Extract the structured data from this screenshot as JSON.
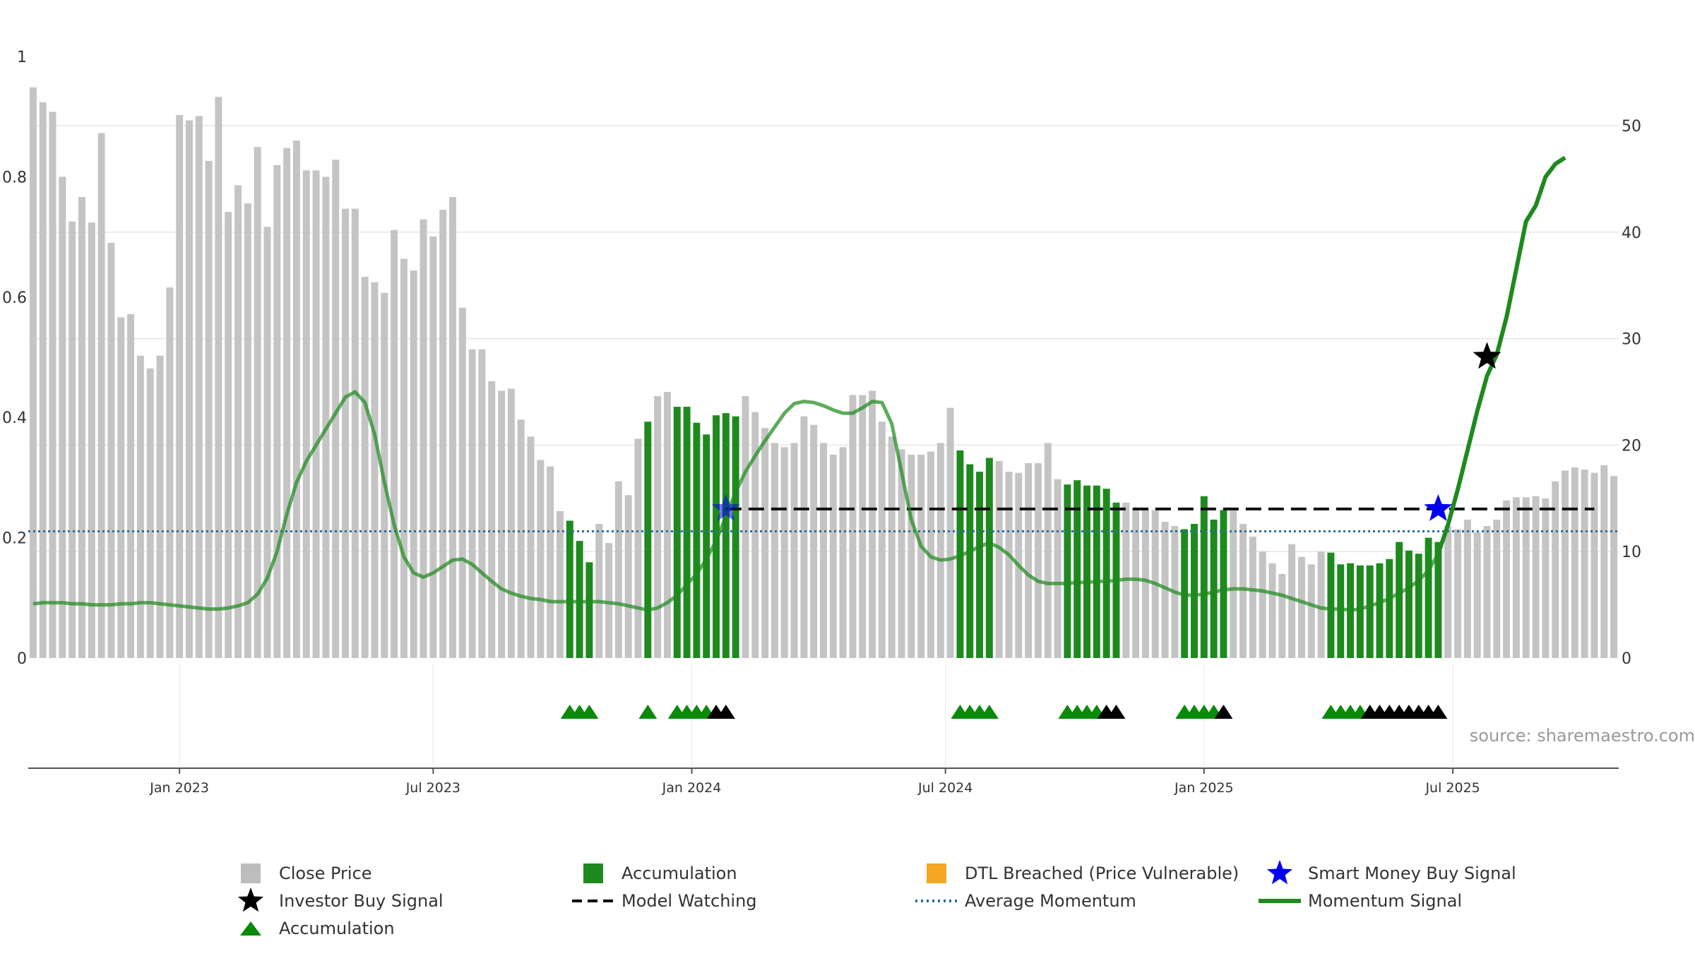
{
  "chart_data": {
    "type": "bar",
    "source_text": "source: sharemaestro.com",
    "left_axis": {
      "ylim": [
        0,
        1
      ],
      "ticks": [
        "0",
        "0.2",
        "0.4",
        "0.6",
        "0.8",
        "1"
      ]
    },
    "right_axis": {
      "ylim": [
        0,
        50
      ],
      "ticks": [
        "0",
        "10",
        "20",
        "30",
        "40",
        "50"
      ]
    },
    "x_ticks": [
      "Jan 2023",
      "Jul 2023",
      "Jan 2024",
      "Jul 2024",
      "Jan 2025",
      "Jul 2025"
    ],
    "close_price": [
      53.6,
      52.2,
      51.3,
      45.2,
      41.0,
      43.3,
      40.9,
      49.3,
      39.0,
      32.0,
      32.3,
      28.4,
      27.2,
      28.4,
      34.8,
      51.0,
      50.5,
      50.9,
      46.7,
      52.7,
      41.9,
      44.4,
      42.7,
      48.0,
      40.5,
      46.3,
      47.9,
      48.6,
      45.8,
      45.8,
      45.2,
      46.8,
      42.2,
      42.2,
      35.8,
      35.3,
      34.3,
      40.2,
      37.5,
      36.4,
      41.2,
      39.6,
      42.1,
      43.3,
      32.9,
      29.0,
      29.0,
      26.0,
      25.1,
      25.3,
      22.4,
      20.8,
      18.6,
      18.0,
      13.8,
      12.9,
      11.0,
      9.0,
      12.6,
      10.8,
      16.6,
      15.3,
      20.6,
      22.2,
      24.6,
      25.0,
      23.6,
      23.6,
      22.1,
      21.0,
      22.8,
      23.0,
      22.7,
      24.6,
      23.1,
      21.6,
      20.2,
      19.8,
      20.2,
      22.7,
      21.9,
      20.2,
      19.1,
      19.8,
      24.7,
      24.7,
      25.1,
      22.2,
      20.8,
      19.6,
      19.1,
      19.1,
      19.4,
      20.2,
      23.5,
      19.5,
      18.2,
      17.5,
      18.8,
      18.5,
      17.5,
      17.4,
      18.3,
      18.3,
      20.2,
      16.8,
      16.3,
      16.7,
      16.2,
      16.2,
      15.9,
      14.6,
      14.6,
      14.1,
      14.1,
      13.9,
      12.8,
      12.4,
      12.1,
      12.6,
      15.2,
      13.0,
      13.9,
      13.9,
      12.6,
      11.4,
      10.0,
      8.9,
      7.9,
      10.7,
      9.5,
      8.8,
      10.0,
      9.9,
      8.8,
      8.9,
      8.7,
      8.7,
      8.9,
      9.3,
      10.9,
      10.1,
      9.8,
      11.3,
      10.9,
      12.4,
      12.1,
      13.0,
      11.8,
      12.4,
      13.0,
      14.8,
      15.1,
      15.1,
      15.2,
      15.0,
      16.6,
      17.6,
      17.9,
      17.7,
      17.4,
      18.1,
      17.1
    ],
    "accumulation_bar_indices": [
      55,
      56,
      57,
      63,
      66,
      67,
      68,
      69,
      70,
      71,
      72,
      95,
      96,
      97,
      98,
      106,
      107,
      108,
      109,
      110,
      111,
      118,
      119,
      120,
      121,
      122,
      133,
      134,
      135,
      136,
      137,
      138,
      139,
      140,
      141,
      142,
      143,
      144
    ],
    "momentum_signal": [
      5.1,
      5.2,
      5.2,
      5.2,
      5.1,
      5.1,
      5.0,
      5.0,
      5.0,
      5.1,
      5.1,
      5.2,
      5.2,
      5.1,
      5.0,
      4.9,
      4.8,
      4.7,
      4.6,
      4.6,
      4.7,
      4.9,
      5.2,
      6.0,
      7.5,
      10.0,
      13.5,
      16.5,
      18.5,
      20.0,
      21.5,
      23.0,
      24.5,
      25.0,
      24.0,
      21.0,
      16.5,
      12.5,
      9.5,
      8.0,
      7.6,
      8.0,
      8.6,
      9.2,
      9.3,
      8.8,
      8.0,
      7.2,
      6.5,
      6.1,
      5.8,
      5.6,
      5.5,
      5.3,
      5.3,
      5.3,
      5.3,
      5.3,
      5.3,
      5.2,
      5.1,
      4.9,
      4.7,
      4.5,
      4.7,
      5.2,
      5.9,
      6.9,
      7.9,
      9.3,
      11.0,
      13.3,
      15.6,
      17.5,
      19.0,
      20.4,
      21.7,
      23.0,
      23.9,
      24.1,
      24.0,
      23.7,
      23.3,
      23.0,
      23.0,
      23.5,
      24.1,
      24.0,
      22.0,
      17.5,
      13.0,
      10.5,
      9.5,
      9.2,
      9.3,
      9.6,
      10.0,
      10.5,
      10.8,
      10.4,
      9.7,
      8.7,
      7.8,
      7.2,
      7.0,
      7.0,
      7.0,
      7.1,
      7.1,
      7.2,
      7.2,
      7.3,
      7.4,
      7.4,
      7.3,
      7.0,
      6.6,
      6.2,
      5.9,
      5.9,
      6.0,
      6.2,
      6.4,
      6.5,
      6.5,
      6.4,
      6.3,
      6.1,
      5.9,
      5.6,
      5.3,
      5.0,
      4.7,
      4.6,
      4.6,
      4.5,
      4.6,
      4.9,
      5.2,
      5.6,
      6.1,
      6.6,
      7.3,
      8.2,
      9.8,
      12.5,
      15.8,
      19.5,
      23.2,
      26.5,
      28.5,
      32.0,
      36.5,
      41.0,
      42.5,
      45.2,
      46.4,
      47.0
    ],
    "average_momentum": 11.9,
    "model_watching_level": 14.0,
    "model_watching_range": [
      71,
      160
    ],
    "smart_money_buy_signals": [
      {
        "index": 71,
        "value": 14.0
      },
      {
        "index": 144,
        "value": 14.0
      }
    ],
    "investor_buy_signals": [
      {
        "index": 149,
        "value": 28.3
      }
    ],
    "accumulation_markers_green": [
      55,
      56,
      57,
      63,
      66,
      67,
      68,
      69,
      95,
      96,
      97,
      98,
      106,
      107,
      108,
      109,
      118,
      119,
      120,
      121,
      133,
      134,
      135,
      136
    ],
    "accumulation_markers_black": [
      70,
      71,
      110,
      111,
      122,
      137,
      138,
      139,
      140,
      141,
      142,
      143,
      144
    ],
    "legend": [
      {
        "label": "Close Price",
        "symbol": "square",
        "color": "#bdbdbd"
      },
      {
        "label": "Accumulation",
        "symbol": "square",
        "color": "#1e8a1e"
      },
      {
        "label": "DTL Breached (Price Vulnerable)",
        "symbol": "square",
        "color": "#f5a623"
      },
      {
        "label": "Smart Money Buy Signal",
        "symbol": "star",
        "color": "#0000ee"
      },
      {
        "label": "Investor Buy Signal",
        "symbol": "star",
        "color": "#000000"
      },
      {
        "label": "Model Watching",
        "symbol": "dash",
        "color": "#000000"
      },
      {
        "label": "Average Momentum",
        "symbol": "dot",
        "color": "#2d6e9e"
      },
      {
        "label": "Momentum Signal",
        "symbol": "line",
        "color": "#1e8a1e"
      },
      {
        "label": "Accumulation",
        "symbol": "triangle",
        "color": "#0a8a0a"
      }
    ],
    "colors": {
      "close_bar": "#c4c4c4",
      "accumulation_bar": "#1e8a1e",
      "momentum_line": "#1e8a1e",
      "average_line": "#2d6e9e",
      "watch_line": "#111111",
      "grid": "#e6e6e6",
      "axis": "#555555"
    }
  }
}
